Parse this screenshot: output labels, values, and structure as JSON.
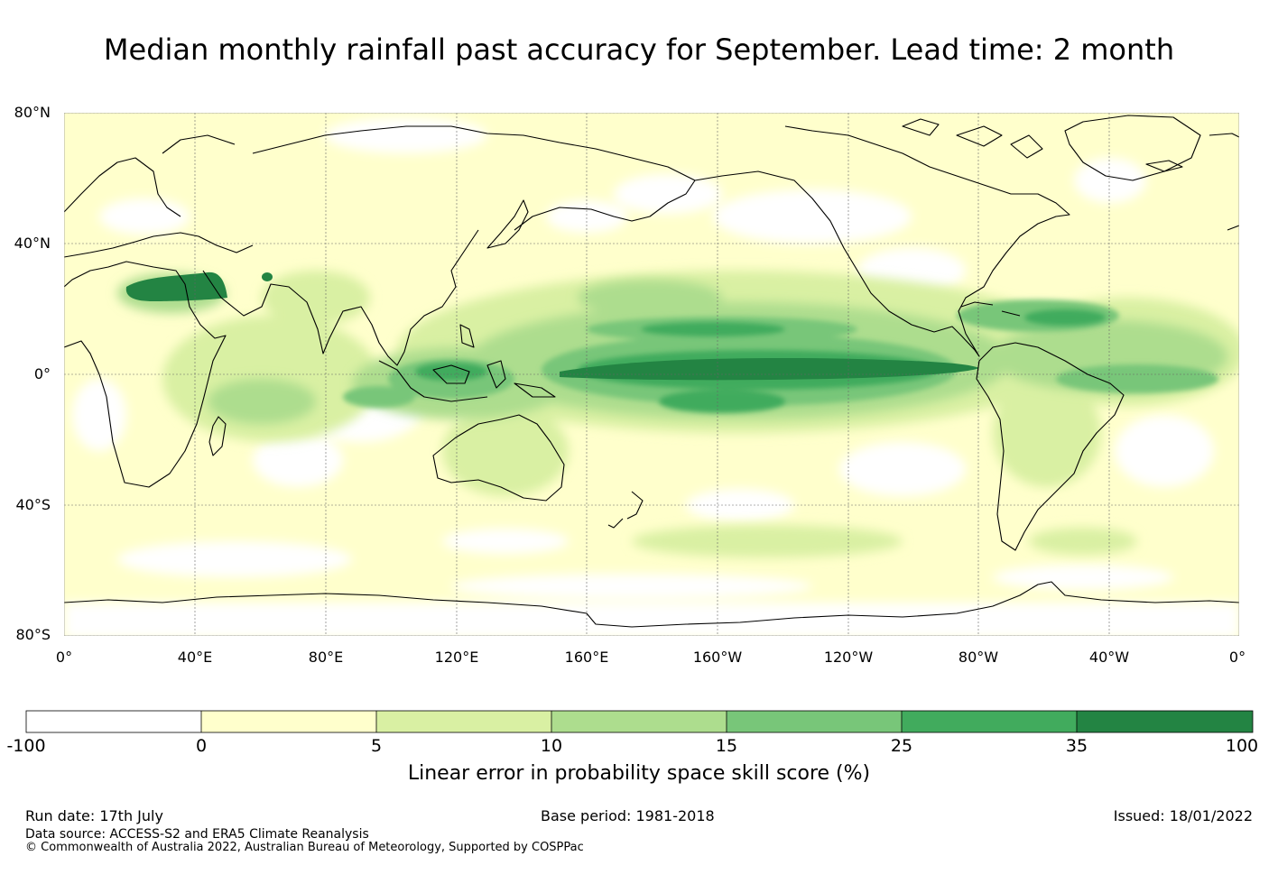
{
  "title": "Median monthly rainfall past accuracy for September. Lead time: 2 month",
  "lat_labels": [
    "80°N",
    "40°N",
    "0°",
    "40°S",
    "80°S"
  ],
  "lon_labels": [
    "0°",
    "40°E",
    "80°E",
    "120°E",
    "160°E",
    "160°W",
    "120°W",
    "80°W",
    "40°W",
    "0°"
  ],
  "colorbar": {
    "ticks": [
      "-100",
      "0",
      "5",
      "10",
      "15",
      "25",
      "35",
      "100"
    ],
    "colors": [
      "#ffffff",
      "#ffffcc",
      "#d9f0a3",
      "#addd8e",
      "#78c679",
      "#41ab5d",
      "#238443"
    ],
    "label": "Linear error in probability space skill score (%)"
  },
  "footer": {
    "run_date": "Run date: 17th July",
    "base_period": "Base period: 1981-2018",
    "issued": "Issued: 18/01/2022",
    "data_source": "Data source: ACCESS-S2 and ERA5 Climate Reanalysis",
    "copyright": "© Commonwealth of Australia 2022, Australian Bureau of Meteorology, Supported by COSPPac"
  }
}
